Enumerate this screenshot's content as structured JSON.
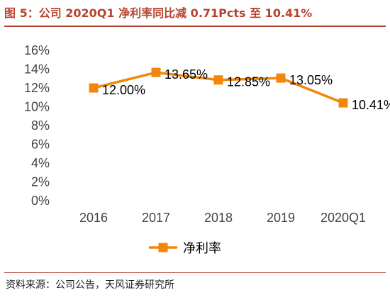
{
  "figure": {
    "title": "图 5：公司 2020Q1 净利率同比减 0.71Pcts 至 10.41%",
    "source": "资料来源：公司公告，天风证券研究所"
  },
  "chart_data": {
    "type": "line",
    "categories": [
      "2016",
      "2017",
      "2018",
      "2019",
      "2020Q1"
    ],
    "series": [
      {
        "name": "净利率",
        "values": [
          12.0,
          13.65,
          12.85,
          13.05,
          10.41
        ],
        "labels": [
          "12.00%",
          "13.65%",
          "12.85%",
          "13.05%",
          "10.41%"
        ],
        "color": "#f0870a"
      }
    ],
    "yticks": [
      "0%",
      "2%",
      "4%",
      "6%",
      "8%",
      "10%",
      "12%",
      "14%",
      "16%"
    ],
    "ylim": [
      0,
      16
    ],
    "grid": false,
    "legend": "bottom"
  }
}
